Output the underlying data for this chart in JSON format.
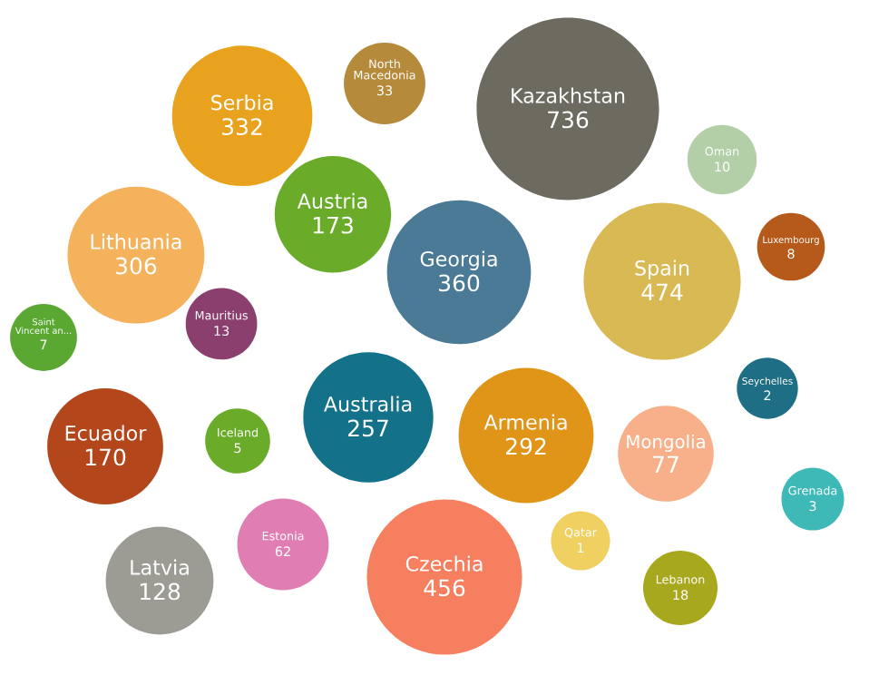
{
  "chart_data": {
    "type": "other",
    "data_labels": true,
    "categories": [
      "Serbia",
      "North Macedonia",
      "Kazakhstan",
      "Oman",
      "Austria",
      "Luxembourg",
      "Lithuania",
      "Georgia",
      "Spain",
      "Saint Vincent an...",
      "Mauritius",
      "Seychelles",
      "Ecuador",
      "Iceland",
      "Australia",
      "Armenia",
      "Mongolia",
      "Grenada",
      "Estonia",
      "Latvia",
      "Czechia",
      "Qatar",
      "Lebanon"
    ],
    "values": [
      332,
      33,
      736,
      10,
      173,
      8,
      306,
      360,
      474,
      7,
      13,
      2,
      170,
      5,
      257,
      292,
      77,
      3,
      62,
      128,
      456,
      1,
      18
    ],
    "colors": [
      "#e8a21e",
      "#b58a3b",
      "#6d6a5f",
      "#b3cfa8",
      "#6aab2a",
      "#b55a1b",
      "#f5b25c",
      "#4a7a96",
      "#d9b954",
      "#5aa832",
      "#8a3f6e",
      "#1e6e85",
      "#b4461c",
      "#6aab2a",
      "#13728a",
      "#e09418",
      "#f7b08a",
      "#3fb8b8",
      "#e07eb4",
      "#9c9c94",
      "#f57f5f",
      "#f0d060",
      "#a8a81e"
    ]
  }
}
